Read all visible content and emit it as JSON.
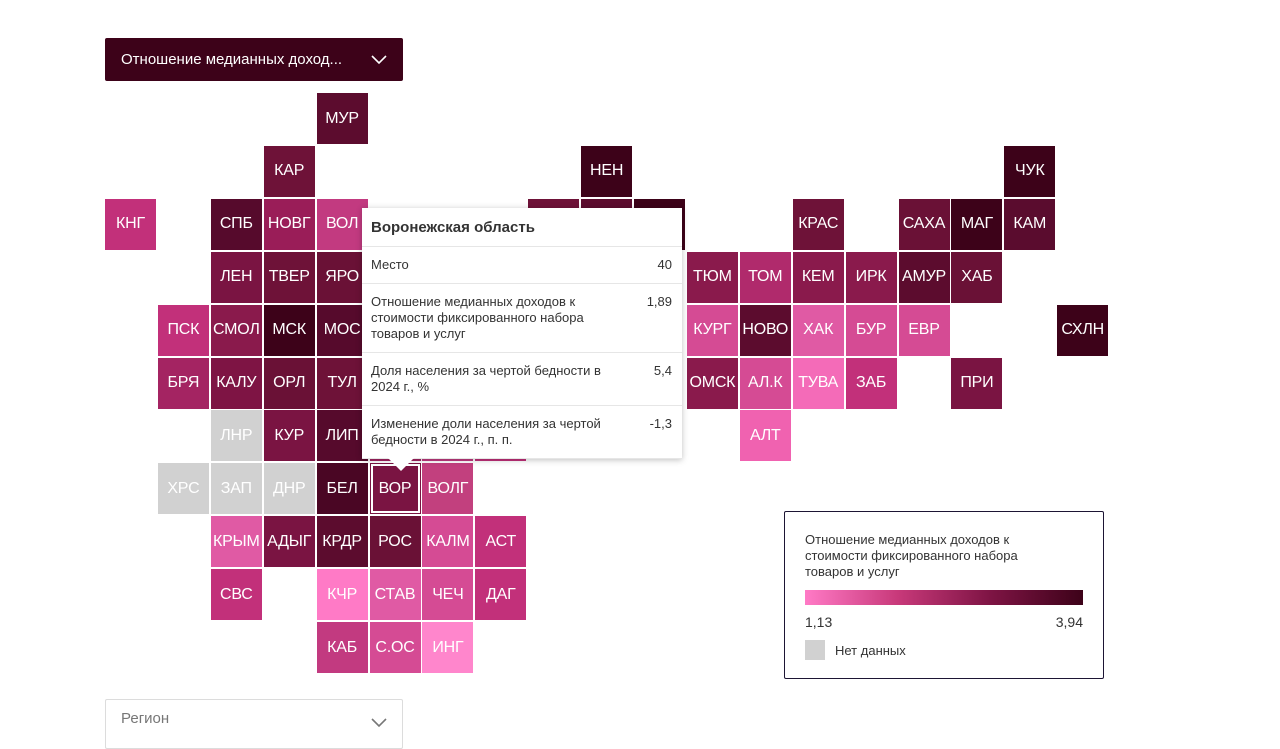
{
  "indicator_select": {
    "label": "Отношение медианных доход..."
  },
  "region_select": {
    "placeholder": "Регион"
  },
  "colors": {
    "dark": "#3d0219",
    "mid": "#7e1444",
    "light": "#ff7ac6",
    "no_data": "#d1d1d1"
  },
  "tiles": [
    {
      "label": "МУР",
      "row": 0,
      "col": 4,
      "color": "#5c0c2e"
    },
    {
      "label": "КАР",
      "row": 1,
      "col": 3,
      "color": "#6e1238"
    },
    {
      "label": "НЕН",
      "row": 1,
      "col": 9,
      "color": "#3d0219"
    },
    {
      "label": "ЧУК",
      "row": 1,
      "col": 17,
      "color": "#3d0219"
    },
    {
      "label": "КНГ",
      "row": 2,
      "col": 0,
      "color": "#c2307a"
    },
    {
      "label": "СПБ",
      "row": 2,
      "col": 2,
      "color": "#560a2c"
    },
    {
      "label": "НОВГ",
      "row": 2,
      "col": 3,
      "color": "#9a1d58"
    },
    {
      "label": "ВОЛ",
      "row": 2,
      "col": 4,
      "color": "#c23a80"
    },
    {
      "label": "КРАС",
      "row": 2,
      "col": 13,
      "color": "#6e1238"
    },
    {
      "label": "САХА",
      "row": 2,
      "col": 15,
      "color": "#6a1136"
    },
    {
      "label": "МАГ",
      "row": 2,
      "col": 16,
      "color": "#3d0219"
    },
    {
      "label": "КАМ",
      "row": 2,
      "col": 17,
      "color": "#5a0c2e"
    },
    {
      "label": "ЛЕН",
      "row": 3,
      "col": 2,
      "color": "#7a1442"
    },
    {
      "label": "ТВЕР",
      "row": 3,
      "col": 3,
      "color": "#6e1238"
    },
    {
      "label": "ЯРО",
      "row": 3,
      "col": 4,
      "color": "#6a1136"
    },
    {
      "label": "ТЮМ",
      "row": 3,
      "col": 11,
      "color": "#8a1a4c"
    },
    {
      "label": "ТОМ",
      "row": 3,
      "col": 12,
      "color": "#b02a6c"
    },
    {
      "label": "КЕМ",
      "row": 3,
      "col": 13,
      "color": "#8a1a4c"
    },
    {
      "label": "ИРК",
      "row": 3,
      "col": 14,
      "color": "#8a1a4c"
    },
    {
      "label": "АМУР",
      "row": 3,
      "col": 15,
      "color": "#5c0c2e"
    },
    {
      "label": "ХАБ",
      "row": 3,
      "col": 16,
      "color": "#6a1136"
    },
    {
      "label": "ПСК",
      "row": 4,
      "col": 1,
      "color": "#c2307a"
    },
    {
      "label": "СМОЛ",
      "row": 4,
      "col": 2,
      "color": "#8a1a4c"
    },
    {
      "label": "МСК",
      "row": 4,
      "col": 3,
      "color": "#3d0219"
    },
    {
      "label": "МОС",
      "row": 4,
      "col": 4,
      "color": "#560a2c"
    },
    {
      "label": "КУРГ",
      "row": 4,
      "col": 11,
      "color": "#d54b94"
    },
    {
      "label": "НОВО",
      "row": 4,
      "col": 12,
      "color": "#5c0c2e"
    },
    {
      "label": "ХАК",
      "row": 4,
      "col": 13,
      "color": "#e05aa4"
    },
    {
      "label": "БУР",
      "row": 4,
      "col": 14,
      "color": "#d54b94"
    },
    {
      "label": "ЕВР",
      "row": 4,
      "col": 15,
      "color": "#d54b94"
    },
    {
      "label": "СХЛН",
      "row": 4,
      "col": 18,
      "color": "#3d0219"
    },
    {
      "label": "БРЯ",
      "row": 5,
      "col": 1,
      "color": "#a42462"
    },
    {
      "label": "КАЛУ",
      "row": 5,
      "col": 2,
      "color": "#7e1444"
    },
    {
      "label": "ОРЛ",
      "row": 5,
      "col": 3,
      "color": "#6a1136"
    },
    {
      "label": "ТУЛ",
      "row": 5,
      "col": 4,
      "color": "#6e1238"
    },
    {
      "label": "ОМСК",
      "row": 5,
      "col": 11,
      "color": "#8a1a4c"
    },
    {
      "label": "АЛ.К",
      "row": 5,
      "col": 12,
      "color": "#d54b94"
    },
    {
      "label": "ТУВА",
      "row": 5,
      "col": 13,
      "color": "#f46bb8"
    },
    {
      "label": "ЗАБ",
      "row": 5,
      "col": 14,
      "color": "#c2307a"
    },
    {
      "label": "ПРИ",
      "row": 5,
      "col": 16,
      "color": "#7a1442"
    },
    {
      "label": "ЛНР",
      "row": 6,
      "col": 2,
      "color": "#d1d1d1"
    },
    {
      "label": "КУР",
      "row": 6,
      "col": 3,
      "color": "#7a1442"
    },
    {
      "label": "ЛИП",
      "row": 6,
      "col": 4,
      "color": "#560a2c"
    },
    {
      "label": "АЛТ",
      "row": 6,
      "col": 12,
      "color": "#f062b0"
    },
    {
      "label": "ХРС",
      "row": 7,
      "col": 1,
      "color": "#d1d1d1"
    },
    {
      "label": "ЗАП",
      "row": 7,
      "col": 2,
      "color": "#d1d1d1"
    },
    {
      "label": "ДНР",
      "row": 7,
      "col": 3,
      "color": "#d1d1d1"
    },
    {
      "label": "БЕЛ",
      "row": 7,
      "col": 4,
      "color": "#4a0624"
    },
    {
      "label": "ВОР",
      "row": 7,
      "col": 5,
      "color": "#7a1442",
      "active": true
    },
    {
      "label": "ВОЛГ",
      "row": 7,
      "col": 6,
      "color": "#c2407e"
    },
    {
      "label": "КРЫМ",
      "row": 8,
      "col": 2,
      "color": "#e05aa4"
    },
    {
      "label": "АДЫГ",
      "row": 8,
      "col": 3,
      "color": "#7a1442"
    },
    {
      "label": "КРДР",
      "row": 8,
      "col": 4,
      "color": "#5c0c2e"
    },
    {
      "label": "РОС",
      "row": 8,
      "col": 5,
      "color": "#6a1136"
    },
    {
      "label": "КАЛМ",
      "row": 8,
      "col": 6,
      "color": "#d54b94"
    },
    {
      "label": "АСТ",
      "row": 8,
      "col": 7,
      "color": "#c2307a"
    },
    {
      "label": "СВС",
      "row": 9,
      "col": 2,
      "color": "#c2307a"
    },
    {
      "label": "КЧР",
      "row": 9,
      "col": 4,
      "color": "#ff7ac6"
    },
    {
      "label": "СТАВ",
      "row": 9,
      "col": 5,
      "color": "#e05aa4"
    },
    {
      "label": "ЧЕЧ",
      "row": 9,
      "col": 6,
      "color": "#d54b94"
    },
    {
      "label": "ДАГ",
      "row": 9,
      "col": 7,
      "color": "#c2307a"
    },
    {
      "label": "КАБ",
      "row": 10,
      "col": 4,
      "color": "#c23a80"
    },
    {
      "label": "С.ОС",
      "row": 10,
      "col": 5,
      "color": "#d54b94"
    },
    {
      "label": "ИНГ",
      "row": 10,
      "col": 6,
      "color": "#ff86cc"
    },
    {
      "label": "",
      "row": 2,
      "col": 8,
      "color": "#6e1238"
    },
    {
      "label": "",
      "row": 2,
      "col": 9,
      "color": "#5c0c2e"
    },
    {
      "label": "",
      "row": 2,
      "col": 10,
      "color": "#3d0219"
    },
    {
      "label": "",
      "row": 6,
      "col": 5,
      "color": "#a42462"
    },
    {
      "label": "",
      "row": 6,
      "col": 6,
      "color": "#c23a80"
    },
    {
      "label": "",
      "row": 6,
      "col": 7,
      "color": "#c2307a"
    }
  ],
  "tooltip": {
    "title": "Воронежская область",
    "rows": [
      {
        "label": "Место",
        "value": "40"
      },
      {
        "label": "Отношение медианных доходов к стоимости фиксированного набора товаров и услуг",
        "value": "1,89"
      },
      {
        "label": "Доля населения за чертой бедности в 2024 г., %",
        "value": "5,4"
      },
      {
        "label": "Изменение доли населения за чертой бедности в 2024 г., п. п.",
        "value": "-1,3"
      }
    ]
  },
  "legend": {
    "title": "Отношение медианных доходов к стоимости фиксированного набора товаров и услуг",
    "min_label": "1,13",
    "max_label": "3,94",
    "no_data_label": "Нет данных"
  }
}
